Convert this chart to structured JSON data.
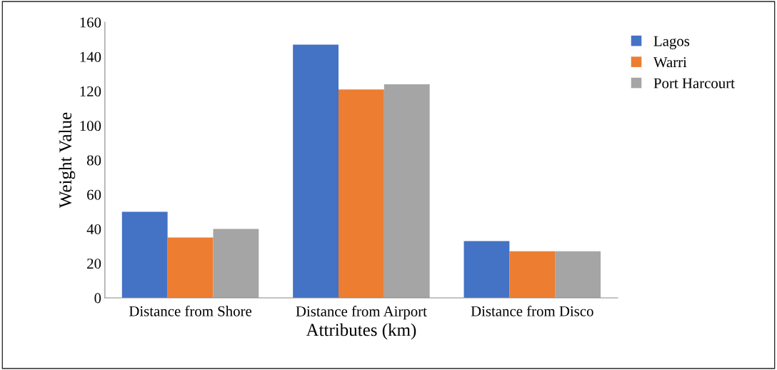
{
  "chart_data": {
    "type": "bar",
    "xlabel": "Attributes (km)",
    "ylabel": "Weight Value",
    "categories": [
      "Distance from Shore",
      "Distance from Airport",
      "Distance from Disco"
    ],
    "series": [
      {
        "name": "Lagos",
        "color": "#4472c4",
        "values": [
          50,
          147,
          33
        ]
      },
      {
        "name": "Warri",
        "color": "#ed7d31",
        "values": [
          35,
          121,
          27
        ]
      },
      {
        "name": "Port Harcourt",
        "color": "#a5a5a5",
        "values": [
          40,
          124,
          27
        ]
      }
    ],
    "ylim": [
      0,
      160
    ],
    "yticks": [
      0,
      20,
      40,
      60,
      80,
      100,
      120,
      140,
      160
    ],
    "grid": false,
    "legend": "top right"
  }
}
